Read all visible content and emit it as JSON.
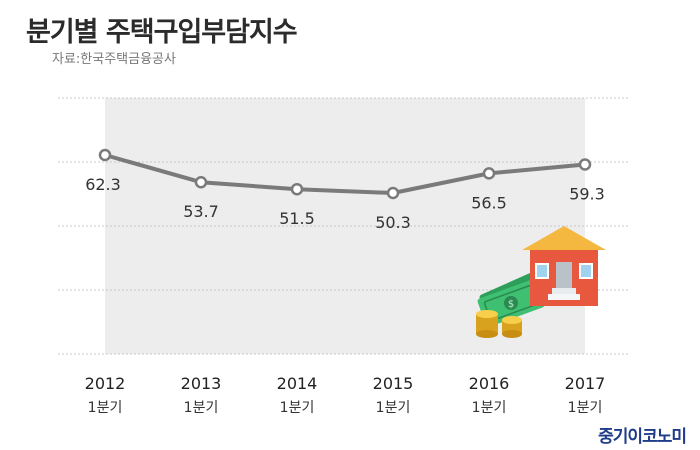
{
  "header": {
    "title": "분기별 주택구입부담지수",
    "source": "자료:한국주택금융공사"
  },
  "brand": {
    "name": "중기이코노미"
  },
  "chart_data": {
    "type": "line",
    "categories": [
      "2012\n1분기",
      "2013\n1분기",
      "2014\n1분기",
      "2015\n1분기",
      "2016\n1분기",
      "2017\n1분기"
    ],
    "x_years": [
      "2012",
      "2013",
      "2014",
      "2015",
      "2016",
      "2017"
    ],
    "x_sublabel": "1분기",
    "series": [
      {
        "values": [
          62.3,
          53.7,
          51.5,
          50.3,
          56.5,
          59.3
        ]
      }
    ],
    "data_labels": [
      "62.3",
      "53.7",
      "51.5",
      "50.3",
      "56.5",
      "59.3"
    ],
    "title": "분기별 주택구입부담지수",
    "xlabel": "",
    "ylabel": "",
    "grid": true,
    "legend": "none",
    "colors": {
      "line": "#7a7a7a",
      "marker_fill": "#ffffff",
      "plot_band": "#ededed",
      "gridline": "#c8c8c8"
    }
  },
  "illustration": {
    "icons": [
      "house-icon",
      "money-icon",
      "coins-icon"
    ]
  }
}
